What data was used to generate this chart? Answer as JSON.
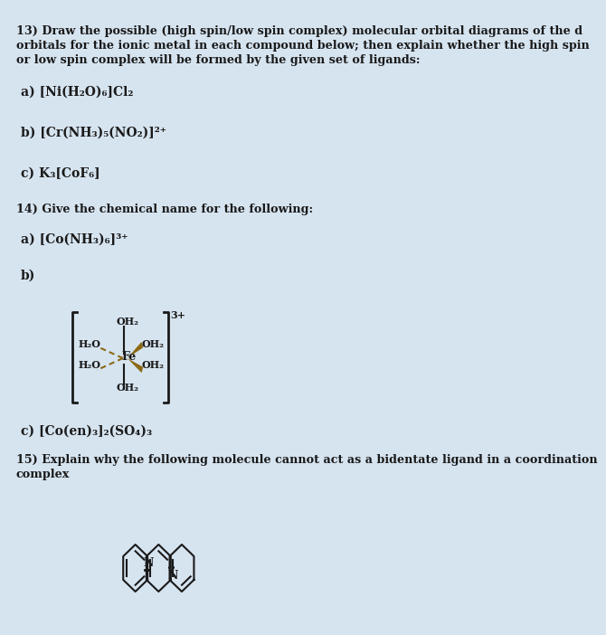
{
  "bg_color": "#d6e4f0",
  "text_color": "#1a1a1a",
  "title_q13": "13) Draw the possible (high spin/low spin complex) molecular orbital diagrams of the d",
  "title_q13_line2": "orbitals for the ionic metal in each compound below; then explain whether the high spin",
  "title_q13_line3": "or low spin complex will be formed by the given set of ligands:",
  "q13a": "a) [Ni(H₂O)₆]Cl₂",
  "q13b": "b) [Cr(NH₃)₅(NO₂)]²⁺",
  "q13c": "c) K₃[CoF₆]",
  "title_q14": "14) Give the chemical name for the following:",
  "q14a": "a) [Co(NH₃)₆]³⁺",
  "q14b": "b)",
  "q14c": "c) [Co(en)₃]₂(SO₄)₃",
  "title_q15": "15) Explain why the following molecule cannot act as a bidentate ligand in a coordination",
  "title_q15_line2": "complex",
  "arrow_color": "#8B6914"
}
